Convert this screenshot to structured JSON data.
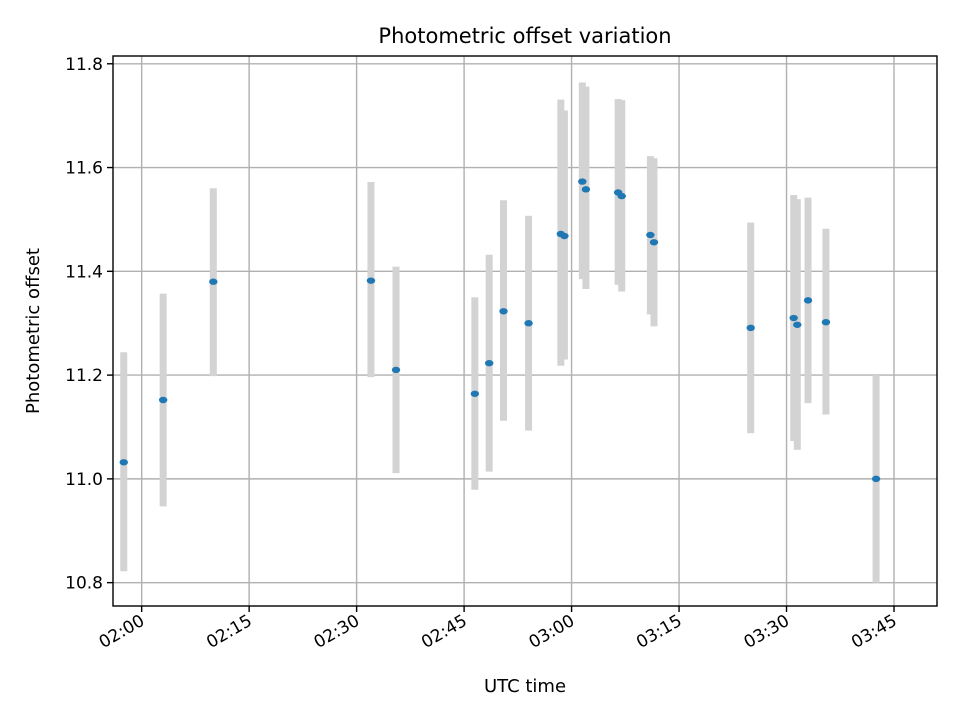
{
  "chart_data": {
    "type": "scatter",
    "title": "Photometric offset variation",
    "xlabel": "UTC time",
    "ylabel": "Photometric offset",
    "grid": true,
    "xlim": [
      "01:56",
      "03:51"
    ],
    "ylim": [
      10.755,
      11.815
    ],
    "xticks": [
      "02:00",
      "02:15",
      "02:30",
      "02:45",
      "03:00",
      "03:15",
      "03:30",
      "03:45"
    ],
    "yticks": [
      10.8,
      11.0,
      11.2,
      11.4,
      11.6,
      11.8
    ],
    "colors": {
      "point": "#1f77b4",
      "errorbar": "#d3d3d3",
      "grid": "#b0b0b0"
    },
    "points": [
      {
        "x": "01:57:30",
        "y": 11.032,
        "ymin": 10.822,
        "ymax": 11.244
      },
      {
        "x": "02:03:00",
        "y": 11.152,
        "ymin": 10.947,
        "ymax": 11.357
      },
      {
        "x": "02:10:00",
        "y": 11.38,
        "ymin": 11.198,
        "ymax": 11.56
      },
      {
        "x": "02:32:00",
        "y": 11.382,
        "ymin": 11.196,
        "ymax": 11.572
      },
      {
        "x": "02:35:30",
        "y": 11.21,
        "ymin": 11.011,
        "ymax": 11.409
      },
      {
        "x": "02:46:30",
        "y": 11.164,
        "ymin": 10.979,
        "ymax": 11.35
      },
      {
        "x": "02:48:30",
        "y": 11.223,
        "ymin": 11.014,
        "ymax": 11.432
      },
      {
        "x": "02:50:30",
        "y": 11.323,
        "ymin": 11.112,
        "ymax": 11.537
      },
      {
        "x": "02:54:00",
        "y": 11.3,
        "ymin": 11.093,
        "ymax": 11.507
      },
      {
        "x": "02:58:30",
        "y": 11.472,
        "ymin": 11.218,
        "ymax": 11.731
      },
      {
        "x": "02:59:00",
        "y": 11.468,
        "ymin": 11.23,
        "ymax": 11.71
      },
      {
        "x": "03:01:30",
        "y": 11.573,
        "ymin": 11.385,
        "ymax": 11.764
      },
      {
        "x": "03:02:00",
        "y": 11.558,
        "ymin": 11.366,
        "ymax": 11.756
      },
      {
        "x": "03:06:30",
        "y": 11.552,
        "ymin": 11.374,
        "ymax": 11.732
      },
      {
        "x": "03:07:00",
        "y": 11.545,
        "ymin": 11.361,
        "ymax": 11.73
      },
      {
        "x": "03:11:00",
        "y": 11.47,
        "ymin": 11.317,
        "ymax": 11.622
      },
      {
        "x": "03:11:30",
        "y": 11.456,
        "ymin": 11.294,
        "ymax": 11.618
      },
      {
        "x": "03:25:00",
        "y": 11.291,
        "ymin": 11.088,
        "ymax": 11.494
      },
      {
        "x": "03:31:00",
        "y": 11.31,
        "ymin": 11.073,
        "ymax": 11.547
      },
      {
        "x": "03:31:30",
        "y": 11.297,
        "ymin": 11.056,
        "ymax": 11.539
      },
      {
        "x": "03:33:00",
        "y": 11.344,
        "ymin": 11.146,
        "ymax": 11.542
      },
      {
        "x": "03:35:30",
        "y": 11.302,
        "ymin": 11.124,
        "ymax": 11.482
      },
      {
        "x": "03:42:30",
        "y": 11.0,
        "ymin": 10.8,
        "ymax": 11.2
      }
    ]
  }
}
